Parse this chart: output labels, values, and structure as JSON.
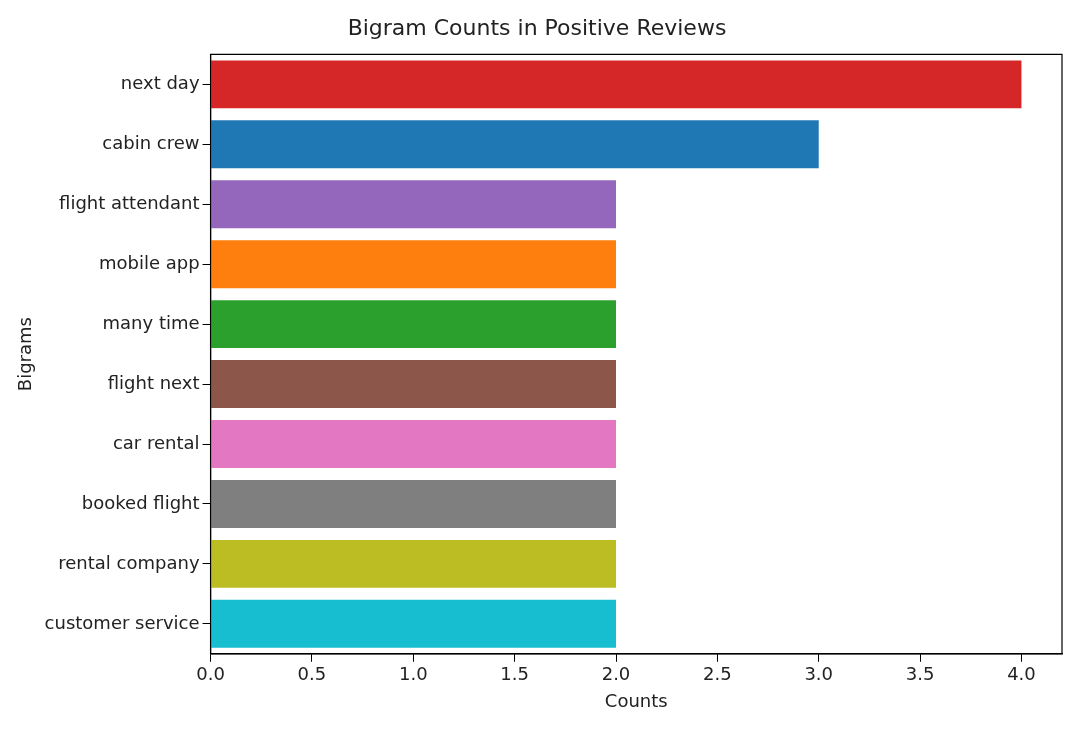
{
  "chart_data": {
    "type": "bar",
    "orientation": "horizontal",
    "title": "Bigram Counts in Positive Reviews",
    "xlabel": "Counts",
    "ylabel": "Bigrams",
    "categories": [
      "next day",
      "cabin crew",
      "flight attendant",
      "mobile app",
      "many time",
      "flight next",
      "car rental",
      "booked flight",
      "rental company",
      "customer service"
    ],
    "values": [
      4,
      3,
      2,
      2,
      2,
      2,
      2,
      2,
      2,
      2
    ],
    "colors": [
      "#d62728",
      "#1f77b4",
      "#9467bd",
      "#ff7f0e",
      "#2ca02c",
      "#8c564b",
      "#e377c2",
      "#7f7f7f",
      "#bcbd22",
      "#17becf"
    ],
    "xlim": [
      0,
      4.2
    ],
    "xticks": [
      {
        "value": 0,
        "label": "0.0"
      },
      {
        "value": 0.5,
        "label": "0.5"
      },
      {
        "value": 1,
        "label": "1.0"
      },
      {
        "value": 1.5,
        "label": "1.5"
      },
      {
        "value": 2,
        "label": "2.0"
      },
      {
        "value": 2.5,
        "label": "2.5"
      },
      {
        "value": 3,
        "label": "3.0"
      },
      {
        "value": 3.5,
        "label": "3.5"
      },
      {
        "value": 4,
        "label": "4.0"
      }
    ],
    "grid": false,
    "legend": false
  }
}
